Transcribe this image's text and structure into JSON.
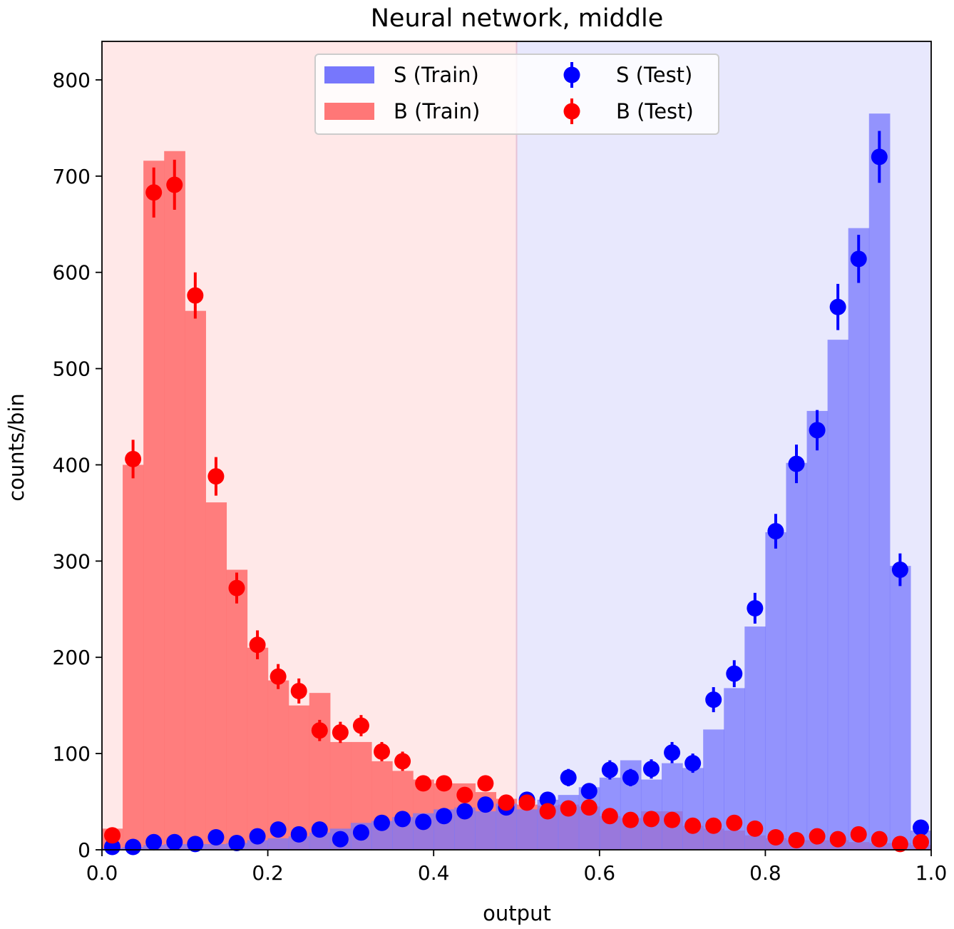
{
  "chart_data": {
    "type": "bar",
    "title": "Neural network, middle",
    "xlabel": "output",
    "ylabel": "counts/bin",
    "xlim": [
      0.0,
      1.0
    ],
    "ylim": [
      0,
      840
    ],
    "xticks": [
      "0.0",
      "0.2",
      "0.4",
      "0.6",
      "0.8",
      "1.0"
    ],
    "xtick_values": [
      0.0,
      0.2,
      0.4,
      0.6,
      0.8,
      1.0
    ],
    "yticks": [
      "0",
      "100",
      "200",
      "300",
      "400",
      "500",
      "600",
      "700",
      "800"
    ],
    "ytick_values": [
      0,
      100,
      200,
      300,
      400,
      500,
      600,
      700,
      800
    ],
    "grid": false,
    "legend_position": "top-center",
    "regions": [
      {
        "x_from": 0.0,
        "x_to": 0.5,
        "color": "#ffe8e8"
      },
      {
        "x_from": 0.5,
        "x_to": 1.0,
        "color": "#e8e8fd"
      }
    ],
    "bin_edges": [
      0.0,
      0.025,
      0.05,
      0.075,
      0.1,
      0.125,
      0.15,
      0.175,
      0.2,
      0.225,
      0.25,
      0.275,
      0.3,
      0.325,
      0.35,
      0.375,
      0.4,
      0.425,
      0.45,
      0.475,
      0.5,
      0.525,
      0.55,
      0.575,
      0.6,
      0.625,
      0.65,
      0.675,
      0.7,
      0.725,
      0.75,
      0.775,
      0.8,
      0.825,
      0.85,
      0.875,
      0.9,
      0.925,
      0.95,
      0.975,
      1.0
    ],
    "bin_centers": [
      0.0125,
      0.0375,
      0.0625,
      0.0875,
      0.1125,
      0.1375,
      0.1625,
      0.1875,
      0.2125,
      0.2375,
      0.2625,
      0.2875,
      0.3125,
      0.3375,
      0.3625,
      0.3875,
      0.4125,
      0.4375,
      0.4625,
      0.4875,
      0.5125,
      0.5375,
      0.5625,
      0.5875,
      0.6125,
      0.6375,
      0.6625,
      0.6875,
      0.7125,
      0.7375,
      0.7625,
      0.7875,
      0.8125,
      0.8375,
      0.8625,
      0.8875,
      0.9125,
      0.9375,
      0.9625,
      0.9875
    ],
    "series": [
      {
        "name": "S (Train)",
        "kind": "hist",
        "color": "#7777fc",
        "values": [
          2,
          3,
          5,
          6,
          6,
          6,
          7,
          10,
          12,
          14,
          18,
          22,
          28,
          30,
          34,
          38,
          42,
          44,
          40,
          48,
          42,
          52,
          57,
          65,
          75,
          93,
          73,
          90,
          85,
          125,
          168,
          232,
          330,
          402,
          456,
          530,
          646,
          765,
          295,
          20
        ]
      },
      {
        "name": "B (Train)",
        "kind": "hist",
        "color": "#ff7777",
        "values": [
          22,
          400,
          716,
          726,
          560,
          361,
          291,
          210,
          176,
          150,
          163,
          112,
          112,
          92,
          82,
          73,
          69,
          69,
          60,
          53,
          47,
          46,
          47,
          45,
          35,
          33,
          40,
          40,
          25,
          22,
          20,
          15,
          12,
          10,
          10,
          10,
          8,
          7,
          7,
          5
        ]
      },
      {
        "name": "S (Test)",
        "kind": "errorbar",
        "color": "#0000ff",
        "values": [
          3,
          3,
          8,
          8,
          6,
          13,
          7,
          14,
          21,
          16,
          21,
          11,
          18,
          28,
          32,
          29,
          35,
          40,
          47,
          44,
          52,
          52,
          75,
          61,
          83,
          75,
          84,
          101,
          90,
          156,
          183,
          251,
          331,
          401,
          436,
          564,
          614,
          720,
          291,
          23
        ],
        "errors": [
          2,
          2,
          3,
          3,
          3,
          4,
          3,
          4,
          5,
          4,
          5,
          4,
          5,
          6,
          6,
          6,
          6,
          7,
          7,
          7,
          8,
          8,
          9,
          8,
          10,
          9,
          10,
          11,
          10,
          13,
          14,
          16,
          18,
          20,
          21,
          24,
          25,
          27,
          17,
          5
        ]
      },
      {
        "name": "B (Test)",
        "kind": "errorbar",
        "color": "#ff0000",
        "values": [
          15,
          406,
          683,
          691,
          576,
          388,
          272,
          213,
          180,
          165,
          124,
          122,
          129,
          102,
          92,
          69,
          69,
          57,
          69,
          49,
          49,
          40,
          43,
          44,
          35,
          31,
          32,
          31,
          25,
          25,
          28,
          22,
          13,
          10,
          14,
          11,
          16,
          11,
          6,
          8
        ],
        "errors": [
          4,
          20,
          26,
          26,
          24,
          20,
          16,
          15,
          13,
          13,
          11,
          11,
          11,
          10,
          10,
          8,
          8,
          8,
          8,
          7,
          7,
          6,
          7,
          7,
          6,
          6,
          6,
          6,
          5,
          5,
          5,
          5,
          4,
          3,
          4,
          3,
          4,
          3,
          2,
          3
        ]
      }
    ]
  }
}
